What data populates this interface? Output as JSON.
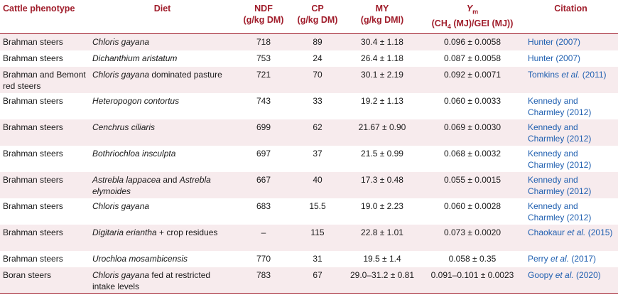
{
  "headers": {
    "phenotype": "Cattle phenotype",
    "diet": "Diet",
    "ndf": "NDF",
    "ndf_unit": "(g/kg DM)",
    "cp": "CP",
    "cp_unit": "(g/kg DM)",
    "my": "MY",
    "my_unit": "(g/kg DMI)",
    "ym_symbol": "Y",
    "ym_sub": "m",
    "ym_unit_pre": "(CH",
    "ym_unit_sub": "4",
    "ym_unit_post": " (MJ)/GEI (MJ))",
    "citation": "Citation"
  },
  "rows": [
    {
      "phenotype": "Brahman steers",
      "diet_italic": "Chloris gayana",
      "diet_rest": "",
      "ndf": "718",
      "cp": "89",
      "my": "30.4 ± 1.18",
      "ym": "0.096 ± 0.0058",
      "cite_pre": "Hunter (2007)",
      "cite_etal": "",
      "cite_post": ""
    },
    {
      "phenotype": "Brahman steers",
      "diet_italic": "Dichanthium aristatum",
      "diet_rest": "",
      "ndf": "753",
      "cp": "24",
      "my": "26.4 ± 1.18",
      "ym": "0.087 ± 0.0058",
      "cite_pre": "Hunter (2007)",
      "cite_etal": "",
      "cite_post": ""
    },
    {
      "phenotype": "Brahman and Bemont red steers",
      "diet_italic": "Chloris gayana",
      "diet_rest": " dominated pasture",
      "ndf": "721",
      "cp": "70",
      "my": "30.1 ± 2.19",
      "ym": "0.092 ± 0.0071",
      "cite_pre": "Tomkins ",
      "cite_etal": "et al.",
      "cite_post": " (2011)"
    },
    {
      "phenotype": "Brahman steers",
      "diet_italic": "Heteropogon contortus",
      "diet_rest": "",
      "ndf": "743",
      "cp": "33",
      "my": "19.2 ± 1.13",
      "ym": "0.060 ± 0.0033",
      "cite_pre": "Kennedy and Charmley (2012)",
      "cite_etal": "",
      "cite_post": ""
    },
    {
      "phenotype": "Brahman steers",
      "diet_italic": "Cenchrus ciliaris",
      "diet_rest": "",
      "ndf": "699",
      "cp": "62",
      "my": "21.67 ± 0.90",
      "ym": "0.069 ± 0.0030",
      "cite_pre": "Kennedy and Charmley (2012)",
      "cite_etal": "",
      "cite_post": ""
    },
    {
      "phenotype": "Brahman steers",
      "diet_italic": "Bothriochloa insculpta",
      "diet_rest": "",
      "ndf": "697",
      "cp": "37",
      "my": "21.5 ± 0.99",
      "ym": "0.068 ± 0.0032",
      "cite_pre": "Kennedy and Charmley (2012)",
      "cite_etal": "",
      "cite_post": ""
    },
    {
      "phenotype": "Brahman steers",
      "diet_italic": "Astrebla lappacea",
      "diet_rest": " and ",
      "diet_italic2": "Astrebla elymoides",
      "ndf": "667",
      "cp": "40",
      "my": "17.3 ± 0.48",
      "ym": "0.055 ± 0.0015",
      "cite_pre": "Kennedy and Charmley (2012)",
      "cite_etal": "",
      "cite_post": ""
    },
    {
      "phenotype": "Brahman steers",
      "diet_italic": "Chloris gayana",
      "diet_rest": "",
      "ndf": "683",
      "cp": "15.5",
      "my": "19.0 ± 2.23",
      "ym": "0.060 ± 0.0028",
      "cite_pre": "Kennedy and Charmley (2012)",
      "cite_etal": "",
      "cite_post": ""
    },
    {
      "phenotype": "Brahman steers",
      "diet_italic": "Digitaria eriantha",
      "diet_rest": " + crop residues",
      "ndf": "–",
      "cp": "115",
      "my": "22.8 ± 1.01",
      "ym": "0.073 ± 0.0020",
      "cite_pre": "Chaokaur ",
      "cite_etal": "et al.",
      "cite_post": " (2015)"
    },
    {
      "phenotype": "Brahman steers",
      "diet_italic": "Urochloa mosambicensis",
      "diet_rest": "",
      "ndf": "770",
      "cp": "31",
      "my": "19.5 ± 1.4",
      "ym": "0.058 ± 0.35",
      "cite_pre": "Perry ",
      "cite_etal": "et al.",
      "cite_post": " (2017)"
    },
    {
      "phenotype": "Boran steers",
      "diet_italic": "Chloris gayana",
      "diet_rest": " fed at restricted intake levels",
      "ndf": "783",
      "cp": "67",
      "my": "29.0–31.2 ± 0.81",
      "ym": "0.091–0.101 ± 0.0023",
      "cite_pre": "Goopy ",
      "cite_etal": "et al.",
      "cite_post": " (2020)"
    }
  ]
}
